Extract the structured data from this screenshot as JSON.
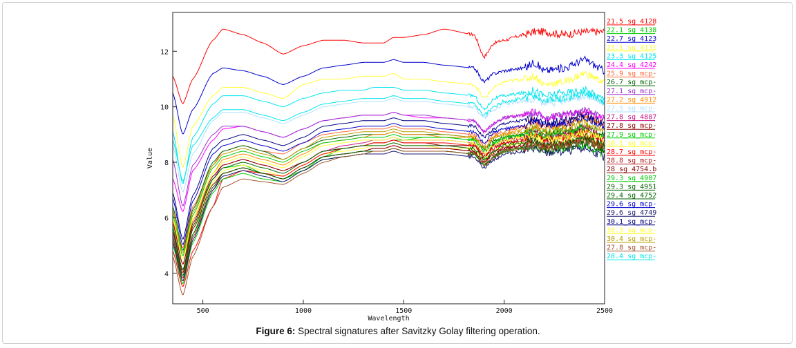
{
  "caption": {
    "label": "Figure 6:",
    "text": "Spectral signatures after Savitzky Golay filtering operation."
  },
  "chart_data": {
    "type": "line",
    "title": "",
    "xlabel": "Wavelength",
    "ylabel": "Value",
    "xlim": [
      350,
      2500
    ],
    "ylim": [
      2.9,
      13.4
    ],
    "xticks": [
      500,
      1000,
      1500,
      2000,
      2500
    ],
    "yticks": [
      4,
      6,
      8,
      10,
      12
    ],
    "legend_position": "right",
    "series": [
      {
        "name": "21.5_sg_4128",
        "color": "#ff0000",
        "v": [
          11.1,
          10.1,
          11.0,
          12.4,
          12.8,
          12.6,
          12.3,
          11.9,
          12.2,
          12.4,
          12.4,
          12.3,
          12.3,
          12.3,
          12.5,
          12.5,
          12.6,
          12.8,
          12.6,
          11.8,
          12.3,
          12.4,
          12.6,
          12.7,
          12.7,
          12.6,
          12.7,
          12.7
        ]
      },
      {
        "name": "22.1_sg_4138",
        "color": "#00cc00",
        "v": [
          5.7,
          3.8,
          5.4,
          7.4,
          7.8,
          7.9,
          7.6,
          7.4,
          7.7,
          8.2,
          8.5,
          8.6,
          8.7,
          8.7,
          8.8,
          8.8,
          8.9,
          8.9,
          8.8,
          8.1,
          8.7,
          8.8,
          9.0,
          8.9,
          9.1,
          9.2,
          8.9,
          8.5
        ]
      },
      {
        "name": "22.7_sg_4123",
        "color": "#0000cc",
        "v": [
          10.5,
          9.0,
          9.9,
          11.2,
          11.4,
          11.3,
          11.1,
          10.8,
          11.1,
          11.4,
          11.5,
          11.6,
          11.6,
          11.6,
          11.7,
          11.6,
          11.6,
          11.5,
          11.4,
          10.9,
          11.2,
          11.3,
          11.4,
          11.6,
          11.3,
          11.4,
          11.7,
          11.3
        ]
      },
      {
        "name": "23.1_sg_4131",
        "color": "#ffff33",
        "v": [
          9.7,
          7.8,
          9.3,
          10.4,
          10.7,
          10.7,
          10.5,
          10.3,
          10.8,
          11.0,
          11.0,
          11.1,
          11.1,
          11.1,
          11.2,
          11.0,
          11.0,
          10.9,
          10.8,
          10.3,
          10.7,
          10.9,
          11.0,
          11.1,
          10.8,
          10.9,
          11.2,
          10.9
        ]
      },
      {
        "name": "23.3_sg_4125",
        "color": "#00e5ee",
        "v": [
          9.1,
          7.2,
          8.9,
          10.1,
          10.4,
          10.4,
          10.2,
          10.0,
          10.3,
          10.5,
          10.6,
          10.6,
          10.7,
          10.7,
          10.7,
          10.6,
          10.6,
          10.5,
          10.4,
          9.9,
          10.3,
          10.4,
          10.5,
          10.6,
          10.4,
          10.5,
          10.6,
          10.3
        ]
      },
      {
        "name": "24.4_sg_4242",
        "color": "#ff00ff",
        "v": [
          7.4,
          6.2,
          7.7,
          8.8,
          9.2,
          9.3,
          9.1,
          8.9,
          9.2,
          9.5,
          9.6,
          9.7,
          9.7,
          9.7,
          9.8,
          9.7,
          9.6,
          9.6,
          9.5,
          9.1,
          9.4,
          9.6,
          9.7,
          9.8,
          9.6,
          9.7,
          9.8,
          9.6
        ]
      },
      {
        "name": "25.9_sg_mcp-",
        "color": "#ff6a3a",
        "v": [
          6.2,
          4.9,
          6.4,
          7.9,
          8.4,
          8.6,
          8.4,
          8.3,
          8.7,
          9.0,
          9.1,
          9.2,
          9.2,
          9.2,
          9.3,
          9.2,
          9.2,
          9.1,
          9.0,
          8.6,
          9.0,
          9.1,
          9.3,
          9.5,
          9.3,
          9.4,
          9.7,
          9.4
        ]
      },
      {
        "name": "26.7_sg_mcp-",
        "color": "#006400",
        "v": [
          6.4,
          4.8,
          6.3,
          8.0,
          8.4,
          8.6,
          8.4,
          8.1,
          8.5,
          8.8,
          8.9,
          9.0,
          9.0,
          9.0,
          9.1,
          9.0,
          9.0,
          9.0,
          8.9,
          8.5,
          8.8,
          8.9,
          9.0,
          9.2,
          9.0,
          9.1,
          9.3,
          9.0
        ]
      },
      {
        "name": "27.1_sg_mcp-",
        "color": "#9932cc",
        "v": [
          8.1,
          6.4,
          7.9,
          9.0,
          9.3,
          9.3,
          9.1,
          8.9,
          9.2,
          9.5,
          9.6,
          9.7,
          9.7,
          9.7,
          9.8,
          9.7,
          9.7,
          9.6,
          9.5,
          9.1,
          9.4,
          9.6,
          9.7,
          9.8,
          9.6,
          9.7,
          9.9,
          9.6
        ]
      },
      {
        "name": "27.2_sg_4912",
        "color": "#ff8c00",
        "v": [
          5.9,
          4.3,
          5.9,
          7.6,
          8.1,
          8.3,
          8.1,
          7.9,
          8.3,
          8.7,
          8.8,
          8.9,
          9.0,
          9.0,
          9.1,
          9.0,
          9.0,
          8.9,
          8.9,
          8.5,
          8.9,
          9.0,
          9.2,
          9.3,
          9.2,
          9.3,
          9.6,
          9.3
        ]
      },
      {
        "name": "27.5_sg_mcp-",
        "color": "#b0e2ff",
        "v": [
          8.6,
          6.9,
          8.3,
          9.5,
          9.8,
          9.8,
          9.6,
          9.4,
          9.7,
          10.0,
          10.1,
          10.2,
          10.2,
          10.2,
          10.3,
          10.2,
          10.2,
          10.1,
          10.0,
          9.6,
          9.9,
          10.1,
          10.2,
          10.3,
          10.1,
          10.2,
          10.4,
          10.1
        ]
      },
      {
        "name": "27.8_sg_4887",
        "color": "#c71585",
        "v": [
          5.4,
          4.1,
          5.7,
          7.4,
          7.9,
          8.1,
          7.9,
          7.7,
          8.0,
          8.4,
          8.6,
          8.7,
          8.8,
          8.8,
          8.9,
          8.8,
          8.8,
          8.8,
          8.7,
          8.3,
          8.6,
          8.8,
          8.9,
          9.1,
          8.9,
          9.0,
          9.2,
          8.9
        ]
      },
      {
        "name": "27.8_sg_mcp-",
        "color": "#8b0000",
        "v": [
          5.8,
          4.3,
          5.8,
          7.5,
          7.9,
          8.1,
          7.9,
          7.7,
          8.0,
          8.4,
          8.5,
          8.6,
          8.7,
          8.7,
          8.8,
          8.7,
          8.7,
          8.6,
          8.6,
          8.2,
          8.6,
          8.7,
          8.8,
          9.0,
          8.8,
          8.9,
          9.1,
          8.8
        ]
      },
      {
        "name": "27.9_sg_mcp-",
        "color": "#00cc00",
        "v": [
          6.1,
          4.6,
          6.1,
          7.8,
          8.2,
          8.4,
          8.2,
          8.0,
          8.4,
          8.7,
          8.8,
          8.9,
          8.9,
          8.9,
          9.0,
          8.9,
          8.9,
          8.9,
          8.8,
          8.4,
          8.7,
          8.9,
          9.0,
          9.1,
          8.9,
          9.0,
          9.2,
          8.9
        ]
      },
      {
        "name": "28.1_sg_mcp-",
        "color": "#ffff33",
        "v": [
          5.6,
          4.0,
          5.6,
          7.3,
          7.7,
          7.9,
          7.7,
          7.5,
          7.9,
          8.3,
          8.4,
          8.5,
          8.6,
          8.6,
          8.7,
          8.6,
          8.6,
          8.5,
          8.5,
          8.1,
          8.4,
          8.6,
          8.7,
          8.8,
          8.6,
          8.7,
          8.9,
          8.6
        ]
      },
      {
        "name": "28.7_sg_mcp-",
        "color": "#ff0000",
        "v": [
          4.8,
          3.5,
          4.8,
          6.4,
          7.4,
          7.7,
          7.6,
          7.5,
          7.9,
          8.3,
          8.5,
          8.6,
          8.7,
          8.7,
          8.8,
          8.7,
          8.7,
          8.7,
          8.6,
          8.2,
          8.5,
          8.7,
          8.8,
          9.0,
          8.8,
          8.9,
          9.1,
          8.8
        ]
      },
      {
        "name": "28.8_sg_mcp-",
        "color": "#b22222",
        "v": [
          5.2,
          3.8,
          5.3,
          7.0,
          7.6,
          7.8,
          7.6,
          7.4,
          7.8,
          8.2,
          8.3,
          8.4,
          8.5,
          8.5,
          8.6,
          8.5,
          8.5,
          8.5,
          8.4,
          8.0,
          8.4,
          8.5,
          8.6,
          8.8,
          8.6,
          8.7,
          8.9,
          8.6
        ]
      },
      {
        "name": "28_sg_4754.b",
        "color": "#8b0000",
        "v": [
          5.5,
          4.0,
          5.6,
          7.2,
          7.6,
          7.8,
          7.6,
          7.4,
          7.8,
          8.2,
          8.3,
          8.4,
          8.5,
          8.5,
          8.6,
          8.5,
          8.5,
          8.5,
          8.4,
          8.0,
          8.3,
          8.5,
          8.6,
          8.7,
          8.5,
          8.6,
          8.8,
          8.5
        ]
      },
      {
        "name": "29.3_sg_4907",
        "color": "#00cc00",
        "v": [
          5.0,
          3.6,
          5.1,
          6.9,
          7.4,
          7.6,
          7.4,
          7.3,
          7.7,
          8.1,
          8.2,
          8.3,
          8.4,
          8.4,
          8.5,
          8.4,
          8.4,
          8.4,
          8.3,
          7.9,
          8.2,
          8.4,
          8.5,
          8.6,
          8.4,
          8.5,
          8.6,
          8.3
        ]
      },
      {
        "name": "29.3_sg_4951",
        "color": "#006400",
        "v": [
          5.3,
          3.9,
          5.4,
          7.1,
          7.6,
          7.8,
          7.6,
          7.4,
          7.8,
          8.2,
          8.3,
          8.4,
          8.4,
          8.4,
          8.5,
          8.4,
          8.4,
          8.4,
          8.3,
          7.9,
          8.2,
          8.4,
          8.5,
          8.6,
          8.4,
          8.5,
          8.7,
          8.4
        ]
      },
      {
        "name": "29.4_sg_4752",
        "color": "#006400",
        "v": [
          5.6,
          4.1,
          5.7,
          7.4,
          7.8,
          8.0,
          7.8,
          7.6,
          8.0,
          8.4,
          8.5,
          8.6,
          8.6,
          8.6,
          8.7,
          8.6,
          8.6,
          8.6,
          8.5,
          8.1,
          8.4,
          8.6,
          8.7,
          8.8,
          8.6,
          8.7,
          8.9,
          8.6
        ]
      },
      {
        "name": "29.6_sg_mcp-",
        "color": "#0000cc",
        "v": [
          6.7,
          5.0,
          6.6,
          8.3,
          8.6,
          8.8,
          8.6,
          8.4,
          8.7,
          9.1,
          9.2,
          9.3,
          9.3,
          9.3,
          9.4,
          9.3,
          9.3,
          9.2,
          9.1,
          8.7,
          9.1,
          9.2,
          9.3,
          9.5,
          9.3,
          9.4,
          9.6,
          9.3
        ]
      },
      {
        "name": "29.6_sg_4749",
        "color": "#191970",
        "v": [
          5.1,
          3.7,
          5.2,
          7.0,
          7.5,
          7.7,
          7.5,
          7.3,
          7.7,
          8.1,
          8.2,
          8.3,
          8.3,
          8.3,
          8.4,
          8.3,
          8.3,
          8.3,
          8.2,
          7.8,
          8.1,
          8.3,
          8.4,
          8.5,
          8.3,
          8.4,
          8.5,
          8.2
        ]
      },
      {
        "name": "30.1_sg_mcp-",
        "color": "#000080",
        "v": [
          6.9,
          5.2,
          6.8,
          8.5,
          8.8,
          9.0,
          8.8,
          8.6,
          8.9,
          9.3,
          9.4,
          9.5,
          9.5,
          9.5,
          9.6,
          9.5,
          9.5,
          9.4,
          9.3,
          8.9,
          9.2,
          9.4,
          9.5,
          9.6,
          9.4,
          9.5,
          9.7,
          9.4
        ]
      },
      {
        "name": "30.3_sg_mcp-",
        "color": "#ffff33",
        "v": [
          6.0,
          4.5,
          6.0,
          7.6,
          8.0,
          8.2,
          8.0,
          7.8,
          8.2,
          8.6,
          8.7,
          8.8,
          8.8,
          8.8,
          8.9,
          8.8,
          8.8,
          8.8,
          8.7,
          8.3,
          8.6,
          8.8,
          8.9,
          9.0,
          8.8,
          8.9,
          9.1,
          8.8
        ]
      },
      {
        "name": "30.4_sg_mcp-",
        "color": "#b8a000",
        "v": [
          6.3,
          4.7,
          6.2,
          7.9,
          8.3,
          8.5,
          8.3,
          8.1,
          8.5,
          8.9,
          9.0,
          9.1,
          9.1,
          9.1,
          9.2,
          9.1,
          9.1,
          9.0,
          8.9,
          8.5,
          8.9,
          9.0,
          9.1,
          9.3,
          9.1,
          9.2,
          9.4,
          9.1
        ]
      },
      {
        "name": "27.8_sg_mcp-",
        "color": "#a0522d",
        "v": [
          4.6,
          3.2,
          4.6,
          6.4,
          7.1,
          7.4,
          7.3,
          7.2,
          7.6,
          8.0,
          8.2,
          8.3,
          8.4,
          8.4,
          8.5,
          8.4,
          8.4,
          8.4,
          8.3,
          7.9,
          8.2,
          8.4,
          8.5,
          8.6,
          8.5,
          8.6,
          8.8,
          8.5
        ]
      },
      {
        "name": "28.4_sg_mcp-",
        "color": "#00e5ee",
        "v": [
          8.8,
          7.3,
          8.6,
          9.6,
          9.9,
          9.9,
          9.7,
          9.5,
          9.8,
          10.1,
          10.2,
          10.3,
          10.3,
          10.3,
          10.4,
          10.3,
          10.3,
          10.2,
          10.1,
          9.7,
          10.0,
          10.2,
          10.3,
          10.4,
          10.2,
          10.3,
          10.5,
          10.2
        ]
      }
    ],
    "x": [
      350,
      400,
      450,
      550,
      600,
      700,
      800,
      900,
      1000,
      1100,
      1200,
      1300,
      1350,
      1400,
      1450,
      1500,
      1600,
      1700,
      1850,
      1900,
      1950,
      2000,
      2100,
      2150,
      2200,
      2300,
      2400,
      2500
    ]
  }
}
